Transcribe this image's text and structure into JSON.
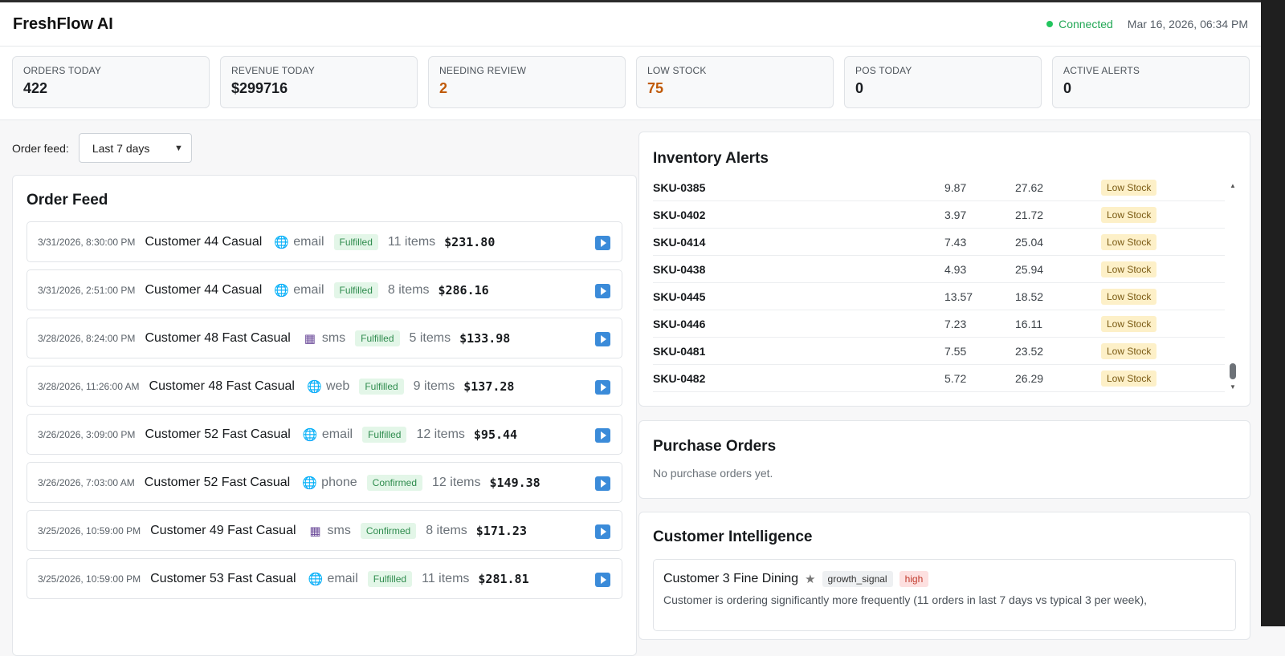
{
  "app": {
    "title": "FreshFlow AI"
  },
  "header": {
    "status": "Connected",
    "datetime": "Mar 16, 2026, 06:34 PM"
  },
  "stats": [
    {
      "label": "ORDERS TODAY",
      "value": "422"
    },
    {
      "label": "REVENUE TODAY",
      "value": "$299716"
    },
    {
      "label": "NEEDING REVIEW",
      "value": "2"
    },
    {
      "label": "LOW STOCK",
      "value": "75"
    },
    {
      "label": "POS TODAY",
      "value": "0"
    },
    {
      "label": "ACTIVE ALERTS",
      "value": "0"
    }
  ],
  "feed_filter": {
    "label": "Order feed:",
    "selected": "Last 7 days"
  },
  "order_feed": {
    "title": "Order Feed",
    "orders": [
      {
        "time": "3/31/2026, 8:30:00 PM",
        "customer": "Customer 44 Casual",
        "channel": "email",
        "channel_icon": "globe-icon",
        "status": "Fulfilled",
        "items": "11 items",
        "amount": "$231.80"
      },
      {
        "time": "3/31/2026, 2:51:00 PM",
        "customer": "Customer 44 Casual",
        "channel": "email",
        "channel_icon": "globe-icon",
        "status": "Fulfilled",
        "items": "8 items",
        "amount": "$286.16"
      },
      {
        "time": "3/28/2026, 8:24:00 PM",
        "customer": "Customer 48 Fast Casual",
        "channel": "sms",
        "channel_icon": "phone-icon",
        "status": "Fulfilled",
        "items": "5 items",
        "amount": "$133.98"
      },
      {
        "time": "3/28/2026, 11:26:00 AM",
        "customer": "Customer 48 Fast Casual",
        "channel": "web",
        "channel_icon": "globe-icon",
        "status": "Fulfilled",
        "items": "9 items",
        "amount": "$137.28"
      },
      {
        "time": "3/26/2026, 3:09:00 PM",
        "customer": "Customer 52 Fast Casual",
        "channel": "email",
        "channel_icon": "globe-icon",
        "status": "Fulfilled",
        "items": "12 items",
        "amount": "$95.44"
      },
      {
        "time": "3/26/2026, 7:03:00 AM",
        "customer": "Customer 52 Fast Casual",
        "channel": "phone",
        "channel_icon": "globe-icon",
        "status": "Confirmed",
        "items": "12 items",
        "amount": "$149.38"
      },
      {
        "time": "3/25/2026, 10:59:00 PM",
        "customer": "Customer 49 Fast Casual",
        "channel": "sms",
        "channel_icon": "phone-icon",
        "status": "Confirmed",
        "items": "8 items",
        "amount": "$171.23"
      },
      {
        "time": "3/25/2026, 10:59:00 PM",
        "customer": "Customer 53 Fast Casual",
        "channel": "email",
        "channel_icon": "globe-icon",
        "status": "Fulfilled",
        "items": "11 items",
        "amount": "$281.81"
      }
    ]
  },
  "inventory_alerts": {
    "title": "Inventory Alerts",
    "rows": [
      {
        "sku": "SKU-0385",
        "a": "9.87",
        "b": "27.62",
        "status": "Low Stock"
      },
      {
        "sku": "SKU-0402",
        "a": "3.97",
        "b": "21.72",
        "status": "Low Stock"
      },
      {
        "sku": "SKU-0414",
        "a": "7.43",
        "b": "25.04",
        "status": "Low Stock"
      },
      {
        "sku": "SKU-0438",
        "a": "4.93",
        "b": "25.94",
        "status": "Low Stock"
      },
      {
        "sku": "SKU-0445",
        "a": "13.57",
        "b": "18.52",
        "status": "Low Stock"
      },
      {
        "sku": "SKU-0446",
        "a": "7.23",
        "b": "16.11",
        "status": "Low Stock"
      },
      {
        "sku": "SKU-0481",
        "a": "7.55",
        "b": "23.52",
        "status": "Low Stock"
      },
      {
        "sku": "SKU-0482",
        "a": "5.72",
        "b": "26.29",
        "status": "Low Stock"
      }
    ]
  },
  "purchase_orders": {
    "title": "Purchase Orders",
    "empty": "No purchase orders yet."
  },
  "customer_intelligence": {
    "title": "Customer Intelligence",
    "items": [
      {
        "name": "Customer 3 Fine Dining",
        "tag": "growth_signal",
        "severity": "high",
        "text": "Customer is ordering significantly more frequently (11 orders in last 7 days vs typical 3 per week),"
      }
    ]
  },
  "colors": {
    "connected": "#22c55e",
    "warn": "#c05a08",
    "accent": "#3b8bd9"
  }
}
